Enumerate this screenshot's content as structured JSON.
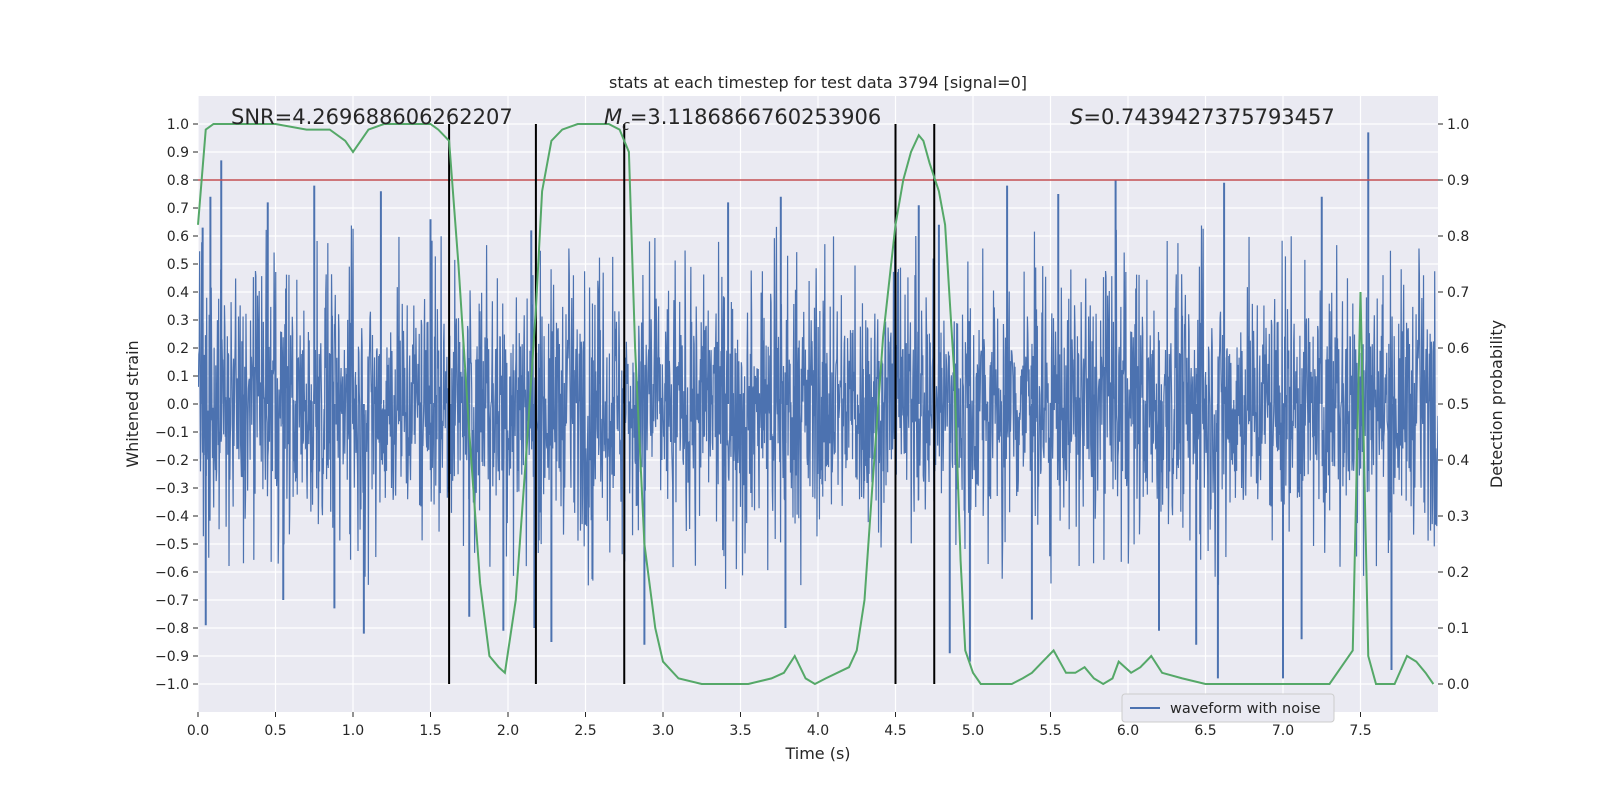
{
  "chart_data": {
    "type": "line",
    "title": "stats at each timestep for test data 3794 [signal=0]",
    "xlabel": "Time (s)",
    "ylabel_left": "Whitened strain",
    "ylabel_right": "Detection probability",
    "xlim": [
      0.0,
      8.0
    ],
    "ylim_left": [
      -1.1,
      1.1
    ],
    "ylim_right": [
      -0.05,
      1.05
    ],
    "x_ticks": [
      0.0,
      0.5,
      1.0,
      1.5,
      2.0,
      2.5,
      3.0,
      3.5,
      4.0,
      4.5,
      5.0,
      5.5,
      6.0,
      6.5,
      7.0,
      7.5
    ],
    "x_tick_labels": [
      "0.0",
      "0.5",
      "1.0",
      "1.5",
      "2.0",
      "2.5",
      "3.0",
      "3.5",
      "4.0",
      "4.5",
      "5.0",
      "5.5",
      "6.0",
      "6.5",
      "7.0",
      "7.5"
    ],
    "y_left_ticks": [
      1.0,
      0.9,
      0.8,
      0.7,
      0.6,
      0.5,
      0.4,
      0.3,
      0.2,
      0.1,
      0.0,
      -0.1,
      -0.2,
      -0.3,
      -0.4,
      -0.5,
      -0.6,
      -0.7,
      -0.8,
      -0.9,
      -1.0
    ],
    "y_left_tick_labels": [
      "1.0",
      "0.9",
      "0.8",
      "0.7",
      "0.6",
      "0.5",
      "0.4",
      "0.3",
      "0.2",
      "0.1",
      "0.0",
      "−0.1",
      "−0.2",
      "−0.3",
      "−0.4",
      "−0.5",
      "−0.6",
      "−0.7",
      "−0.8",
      "−0.9",
      "−1.0"
    ],
    "y_right_ticks": [
      1.0,
      0.9,
      0.8,
      0.7,
      0.6,
      0.5,
      0.4,
      0.3,
      0.2,
      0.1,
      0.0
    ],
    "y_right_tick_labels": [
      "1.0",
      "0.9",
      "0.8",
      "0.7",
      "0.6",
      "0.5",
      "0.4",
      "0.3",
      "0.2",
      "0.1",
      "0.0"
    ],
    "grid": true,
    "legend": {
      "entries": [
        "waveform with noise"
      ],
      "placement": "lower-right"
    },
    "annotations": {
      "snr": "SNR=4.269688606262207",
      "mc_symbol": "M",
      "mc_sub": "c",
      "mc_value": "=3.1186866760253906",
      "s_symbol": "S",
      "s_value": "=0.7439427375793457"
    },
    "threshold": {
      "value": 0.9,
      "axis": "right",
      "color": "#c44e52"
    },
    "vertical_lines": [
      1.62,
      2.18,
      2.75,
      4.5,
      4.75
    ],
    "series": [
      {
        "name": "waveform with noise",
        "axis": "left",
        "color": "#4c72b0",
        "kind": "dense_noise",
        "samples": 3000,
        "body_amplitude": 0.45,
        "peak_max": 0.97,
        "trough_min": -0.98,
        "spikes_up": [
          [
            0.03,
            0.63
          ],
          [
            0.08,
            0.74
          ],
          [
            0.15,
            0.87
          ],
          [
            0.45,
            0.72
          ],
          [
            0.75,
            0.78
          ],
          [
            1.18,
            0.76
          ],
          [
            1.5,
            0.66
          ],
          [
            2.15,
            0.62
          ],
          [
            3.42,
            0.72
          ],
          [
            3.76,
            0.74
          ],
          [
            4.65,
            0.71
          ],
          [
            4.78,
            0.64
          ],
          [
            5.22,
            0.78
          ],
          [
            5.55,
            0.75
          ],
          [
            5.92,
            0.8
          ],
          [
            6.62,
            0.79
          ],
          [
            7.25,
            0.74
          ],
          [
            7.55,
            0.97
          ]
        ],
        "spikes_down": [
          [
            0.05,
            -0.79
          ],
          [
            0.55,
            -0.7
          ],
          [
            0.88,
            -0.73
          ],
          [
            1.07,
            -0.82
          ],
          [
            1.75,
            -0.76
          ],
          [
            1.97,
            -0.81
          ],
          [
            2.17,
            -0.8
          ],
          [
            2.28,
            -0.85
          ],
          [
            2.88,
            -0.86
          ],
          [
            3.79,
            -0.8
          ],
          [
            4.85,
            -0.89
          ],
          [
            4.98,
            -0.92
          ],
          [
            5.38,
            -0.77
          ],
          [
            6.2,
            -0.81
          ],
          [
            6.44,
            -0.86
          ],
          [
            6.58,
            -0.98
          ],
          [
            7.0,
            -0.98
          ],
          [
            7.12,
            -0.84
          ],
          [
            7.7,
            -0.95
          ]
        ]
      },
      {
        "name": "",
        "axis": "right",
        "color": "#55a868",
        "kind": "line",
        "x": [
          0.0,
          0.05,
          0.1,
          0.15,
          0.3,
          0.5,
          0.7,
          0.85,
          0.95,
          1.0,
          1.05,
          1.1,
          1.2,
          1.35,
          1.5,
          1.55,
          1.62,
          1.68,
          1.75,
          1.82,
          1.88,
          1.94,
          1.98,
          2.05,
          2.12,
          2.18,
          2.22,
          2.28,
          2.35,
          2.45,
          2.55,
          2.65,
          2.72,
          2.78,
          2.82,
          2.88,
          2.95,
          3.0,
          3.1,
          3.25,
          3.45,
          3.55,
          3.7,
          3.78,
          3.85,
          3.92,
          3.98,
          4.05,
          4.2,
          4.25,
          4.3,
          4.35,
          4.42,
          4.5,
          4.55,
          4.6,
          4.65,
          4.68,
          4.72,
          4.78,
          4.82,
          4.88,
          4.92,
          4.95,
          5.0,
          5.05,
          5.15,
          5.25,
          5.32,
          5.38,
          5.45,
          5.52,
          5.6,
          5.66,
          5.72,
          5.78,
          5.84,
          5.9,
          5.94,
          6.02,
          6.08,
          6.15,
          6.22,
          6.35,
          6.5,
          6.7,
          6.9,
          7.1,
          7.3,
          7.45,
          7.5,
          7.55,
          7.6,
          7.65,
          7.72,
          7.8,
          7.86,
          7.92,
          7.97
        ],
        "y": [
          0.82,
          0.99,
          1.0,
          1.0,
          1.0,
          1.0,
          0.99,
          0.99,
          0.97,
          0.95,
          0.97,
          0.99,
          1.0,
          1.0,
          1.0,
          0.99,
          0.97,
          0.75,
          0.45,
          0.18,
          0.05,
          0.03,
          0.02,
          0.15,
          0.42,
          0.67,
          0.88,
          0.97,
          0.99,
          1.0,
          1.0,
          1.0,
          0.99,
          0.95,
          0.6,
          0.25,
          0.1,
          0.04,
          0.01,
          0.0,
          0.0,
          0.0,
          0.01,
          0.02,
          0.05,
          0.01,
          0.0,
          0.01,
          0.03,
          0.06,
          0.15,
          0.35,
          0.62,
          0.82,
          0.9,
          0.95,
          0.98,
          0.97,
          0.93,
          0.88,
          0.82,
          0.55,
          0.22,
          0.06,
          0.02,
          0.0,
          0.0,
          0.0,
          0.01,
          0.02,
          0.04,
          0.06,
          0.02,
          0.02,
          0.03,
          0.01,
          0.0,
          0.01,
          0.04,
          0.02,
          0.03,
          0.05,
          0.02,
          0.01,
          0.0,
          0.0,
          0.0,
          0.0,
          0.0,
          0.06,
          0.7,
          0.05,
          0.0,
          0.0,
          0.0,
          0.05,
          0.04,
          0.02,
          0.0
        ]
      }
    ]
  }
}
